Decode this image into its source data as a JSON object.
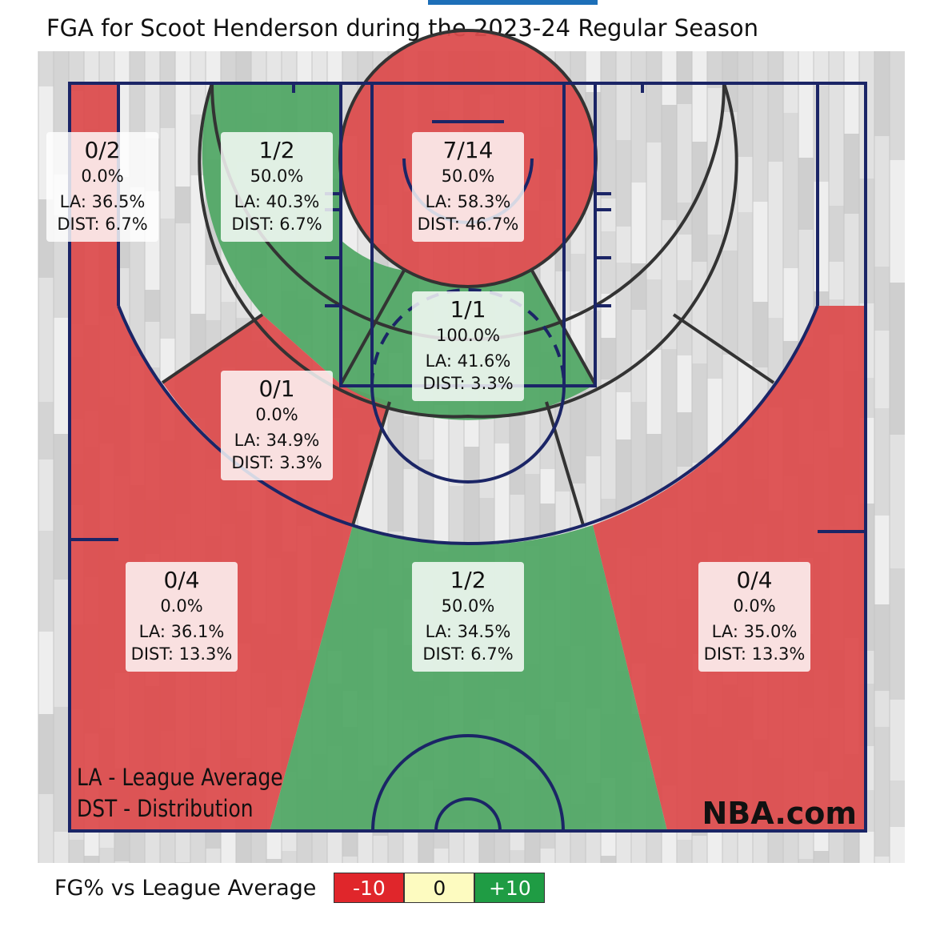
{
  "title": "FGA for Scoot Henderson during the 2023-24 Regular Season",
  "colors": {
    "below": "#dc4d4e",
    "above": "#52a866",
    "neutral": "#dcdcdc",
    "lines": "#1b2566",
    "zoneBorder": "#333333"
  },
  "chart_data": {
    "type": "table",
    "title": "FGA for Scoot Henderson during the 2023-24 Regular Season",
    "zones": [
      {
        "id": "left-corner-3",
        "made_attempts": "0/2",
        "fg_pct": "0.0%",
        "league_avg": "LA: 36.5%",
        "distribution": "DIST: 6.7%",
        "vs_league": "below"
      },
      {
        "id": "left-baseline-mid",
        "made_attempts": "1/2",
        "fg_pct": "50.0%",
        "league_avg": "LA: 40.3%",
        "distribution": "DIST: 6.7%",
        "vs_league": "above"
      },
      {
        "id": "restricted-area",
        "made_attempts": "7/14",
        "fg_pct": "50.0%",
        "league_avg": "LA: 58.3%",
        "distribution": "DIST: 46.7%",
        "vs_league": "below"
      },
      {
        "id": "paint-non-ra",
        "made_attempts": "1/1",
        "fg_pct": "100.0%",
        "league_avg": "LA: 41.6%",
        "distribution": "DIST: 3.3%",
        "vs_league": "above"
      },
      {
        "id": "left-wing-mid",
        "made_attempts": "0/1",
        "fg_pct": "0.0%",
        "league_avg": "LA: 34.9%",
        "distribution": "DIST: 3.3%",
        "vs_league": "below"
      },
      {
        "id": "left-wing-3",
        "made_attempts": "0/4",
        "fg_pct": "0.0%",
        "league_avg": "LA: 36.1%",
        "distribution": "DIST: 13.3%",
        "vs_league": "below"
      },
      {
        "id": "top-key-3",
        "made_attempts": "1/2",
        "fg_pct": "50.0%",
        "league_avg": "LA: 34.5%",
        "distribution": "DIST: 6.7%",
        "vs_league": "above"
      },
      {
        "id": "right-wing-3",
        "made_attempts": "0/4",
        "fg_pct": "0.0%",
        "league_avg": "LA: 35.0%",
        "distribution": "DIST: 13.3%",
        "vs_league": "below"
      }
    ],
    "empty_zones": [
      "right-corner-3",
      "right-baseline-mid",
      "right-wing-mid",
      "top-key-mid"
    ]
  },
  "notes": {
    "la": "LA - League Average",
    "dst": "DST - Distribution"
  },
  "brand": "NBA.com",
  "legend": {
    "label": "FG% vs League Average",
    "items": [
      "-10",
      "0",
      "+10"
    ],
    "colors": [
      "#e0262b",
      "#fdfbc0",
      "#1f9c44"
    ]
  }
}
